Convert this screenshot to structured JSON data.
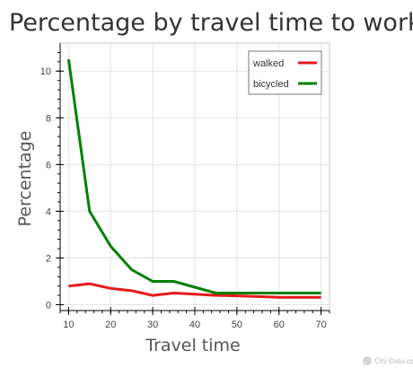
{
  "chart_data": {
    "type": "line",
    "title": "Percentage by travel time to work",
    "xlabel": "Travel time",
    "ylabel": "Percentage",
    "x": [
      10,
      15,
      20,
      25,
      30,
      35,
      40,
      45,
      50,
      55,
      60,
      65,
      70
    ],
    "series": [
      {
        "name": "walked",
        "color": "#e41a1c",
        "values": [
          0.8,
          0.9,
          0.7,
          0.6,
          0.4,
          0.5,
          0.45,
          0.4,
          0.38,
          0.35,
          0.32,
          0.32,
          0.32
        ]
      },
      {
        "name": "bicycled",
        "color": "#008000",
        "values": [
          10.5,
          4.0,
          2.5,
          1.5,
          1.0,
          1.0,
          0.75,
          0.5,
          0.5,
          0.5,
          0.5,
          0.5,
          0.5
        ]
      }
    ],
    "xticks": [
      10,
      20,
      30,
      40,
      50,
      60,
      70
    ],
    "yticks": [
      0,
      2,
      4,
      6,
      8,
      10
    ],
    "xlim": [
      8,
      72
    ],
    "ylim": [
      -0.25,
      11.2
    ],
    "grid": true,
    "legend": "top-right"
  },
  "credit": "City-Data.com"
}
